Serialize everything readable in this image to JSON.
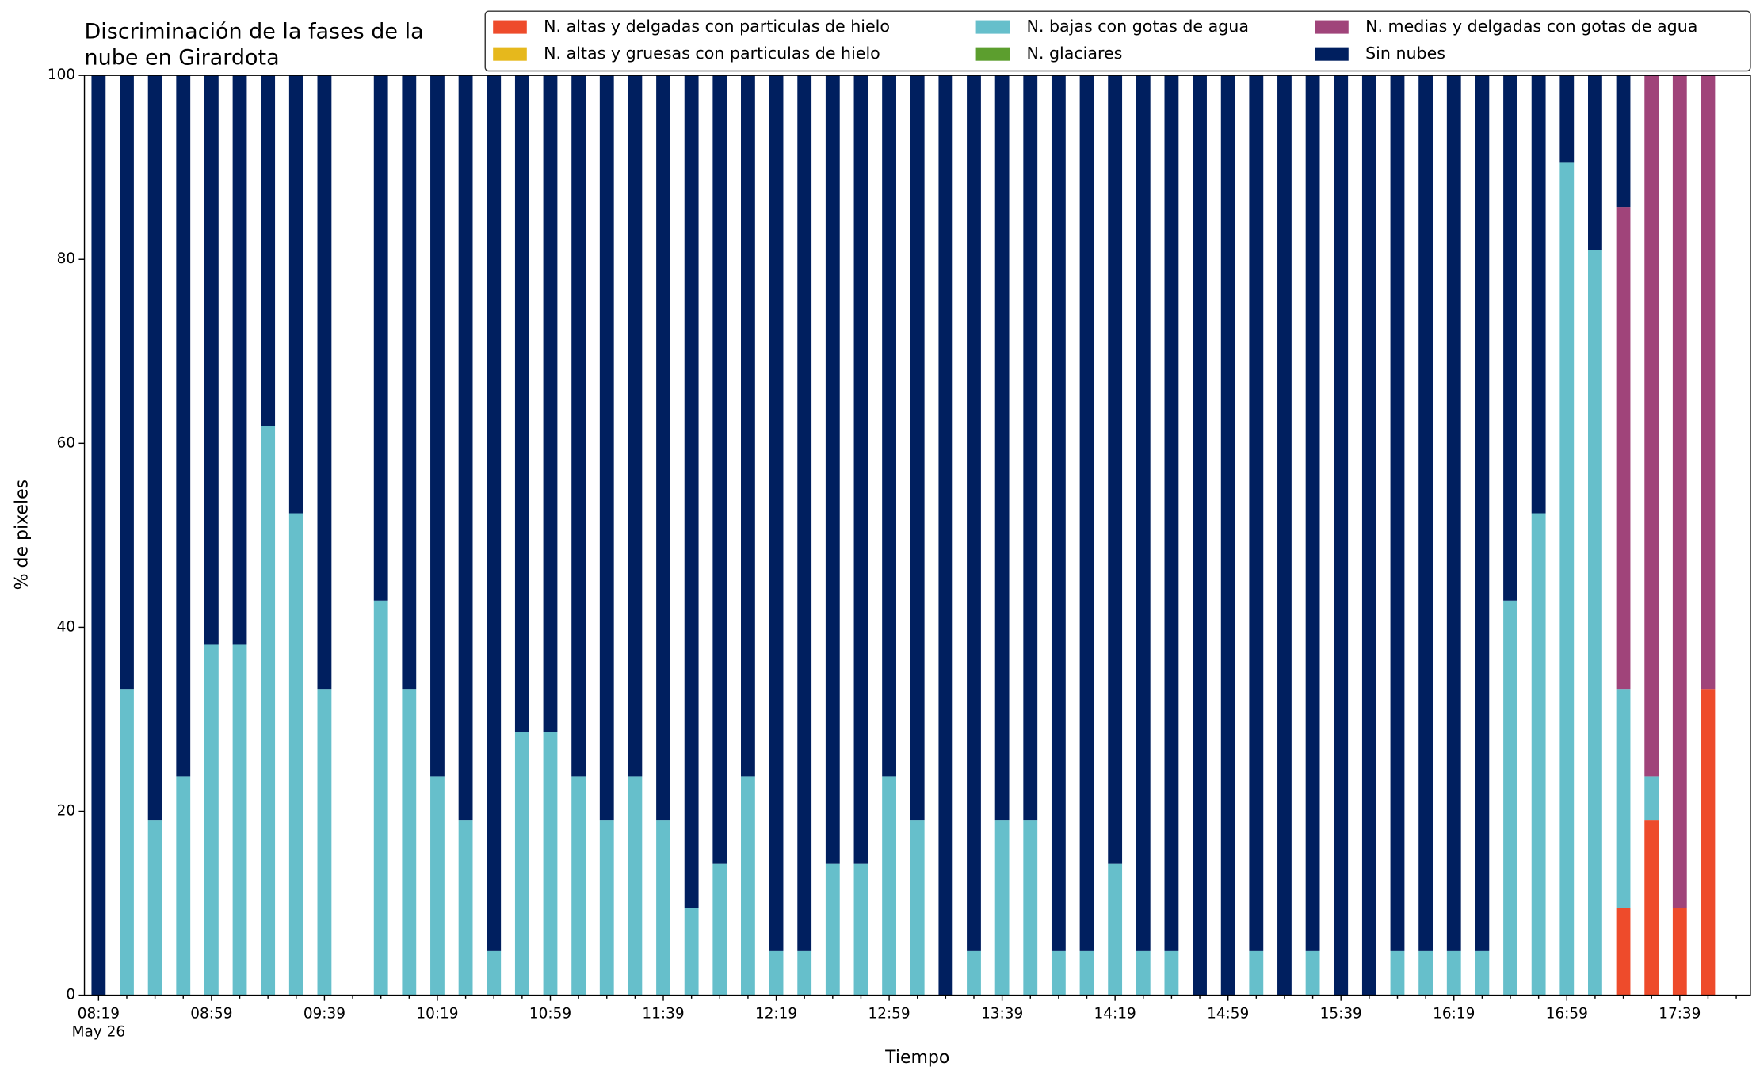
{
  "chart_data": {
    "type": "stacked_bar",
    "title": [
      "Discriminación de la fases de la",
      "nube en Girardota"
    ],
    "xlabel": "Tiempo",
    "ylabel": "% de pixeles",
    "x_date_label": "May 26",
    "categories": [
      "08:19",
      null,
      null,
      null,
      "08:59",
      null,
      null,
      null,
      "09:39",
      null,
      null,
      null,
      "10:19",
      null,
      null,
      null,
      "10:59",
      null,
      null,
      null,
      "11:39",
      null,
      null,
      null,
      "12:19",
      null,
      null,
      null,
      "12:59",
      null,
      null,
      null,
      "13:39",
      null,
      null,
      null,
      "14:19",
      null,
      null,
      null,
      "14:59",
      null,
      null,
      null,
      "15:39",
      null,
      null,
      null,
      "16:19",
      null,
      null,
      null,
      "16:59",
      null,
      null,
      null,
      "17:39",
      null,
      null
    ],
    "ylim": [
      0,
      100
    ],
    "yticks": [
      0,
      20,
      40,
      60,
      80,
      100
    ],
    "legend": "upper right",
    "legend_ncol": 3,
    "series": [
      {
        "name": "N. altas y delgadas con particulas de hielo",
        "color": "#ee4b2b",
        "values": [
          0,
          0,
          0,
          0,
          0,
          0,
          0,
          0,
          0,
          null,
          0,
          0,
          0,
          0,
          0,
          0,
          0,
          0,
          0,
          0,
          0,
          0,
          0,
          0,
          0,
          0,
          0,
          0,
          0,
          0,
          0,
          0,
          0,
          0,
          0,
          0,
          0,
          0,
          0,
          0,
          0,
          0,
          0,
          0,
          0,
          0,
          0,
          0,
          0,
          0,
          0,
          0,
          0,
          0,
          9.5,
          19.0,
          9.5,
          33.3,
          null
        ]
      },
      {
        "name": "N. altas y gruesas con particulas de hielo",
        "color": "#e6b81c",
        "values": [
          0,
          0,
          0,
          0,
          0,
          0,
          0,
          0,
          0,
          null,
          0,
          0,
          0,
          0,
          0,
          0,
          0,
          0,
          0,
          0,
          0,
          0,
          0,
          0,
          0,
          0,
          0,
          0,
          0,
          0,
          0,
          0,
          0,
          0,
          0,
          0,
          0,
          0,
          0,
          0,
          0,
          0,
          0,
          0,
          0,
          0,
          0,
          0,
          0,
          0,
          0,
          0,
          0,
          0,
          0,
          0,
          0,
          0,
          null
        ]
      },
      {
        "name": "N. bajas con gotas de agua",
        "color": "#66bfcb",
        "values": [
          0,
          33.3,
          19.0,
          23.8,
          38.1,
          38.1,
          61.9,
          52.4,
          33.3,
          null,
          42.9,
          33.3,
          23.8,
          19.0,
          4.8,
          28.6,
          28.6,
          23.8,
          19.0,
          23.8,
          19.0,
          9.5,
          14.3,
          23.8,
          4.8,
          4.8,
          14.3,
          14.3,
          23.8,
          19.0,
          0,
          4.8,
          19.0,
          19.0,
          4.8,
          4.8,
          14.3,
          4.8,
          4.8,
          0,
          0,
          4.8,
          0,
          4.8,
          0,
          0,
          4.8,
          4.8,
          4.8,
          4.8,
          42.9,
          52.4,
          90.5,
          81.0,
          23.8,
          4.8,
          0,
          0,
          null
        ]
      },
      {
        "name": "N. glaciares",
        "color": "#5c9e2e",
        "values": [
          0,
          0,
          0,
          0,
          0,
          0,
          0,
          0,
          0,
          null,
          0,
          0,
          0,
          0,
          0,
          0,
          0,
          0,
          0,
          0,
          0,
          0,
          0,
          0,
          0,
          0,
          0,
          0,
          0,
          0,
          0,
          0,
          0,
          0,
          0,
          0,
          0,
          0,
          0,
          0,
          0,
          0,
          0,
          0,
          0,
          0,
          0,
          0,
          0,
          0,
          0,
          0,
          0,
          0,
          0,
          0,
          0,
          0,
          null
        ]
      },
      {
        "name": "N. medias y delgadas con gotas de agua",
        "color": "#a0447a",
        "values": [
          0,
          0,
          0,
          0,
          0,
          0,
          0,
          0,
          0,
          null,
          0,
          0,
          0,
          0,
          0,
          0,
          0,
          0,
          0,
          0,
          0,
          0,
          0,
          0,
          0,
          0,
          0,
          0,
          0,
          0,
          0,
          0,
          0,
          0,
          0,
          0,
          0,
          0,
          0,
          0,
          0,
          0,
          0,
          0,
          0,
          0,
          0,
          0,
          0,
          0,
          0,
          0,
          0,
          0,
          52.4,
          76.2,
          90.5,
          66.7,
          null
        ]
      },
      {
        "name": "Sin nubes",
        "color": "#001f5f",
        "values": [
          100,
          66.7,
          81.0,
          76.2,
          61.9,
          61.9,
          38.1,
          47.6,
          66.7,
          null,
          57.1,
          66.7,
          76.2,
          81.0,
          95.2,
          71.4,
          71.4,
          76.2,
          81.0,
          76.2,
          81.0,
          90.5,
          85.7,
          76.2,
          95.2,
          95.2,
          85.7,
          85.7,
          76.2,
          81.0,
          100,
          95.2,
          81.0,
          81.0,
          95.2,
          95.2,
          85.7,
          95.2,
          95.2,
          100,
          100,
          95.2,
          100,
          95.2,
          100,
          100,
          95.2,
          95.2,
          95.2,
          95.2,
          57.1,
          47.6,
          9.5,
          19.0,
          14.3,
          0,
          0,
          0,
          null
        ]
      }
    ]
  }
}
